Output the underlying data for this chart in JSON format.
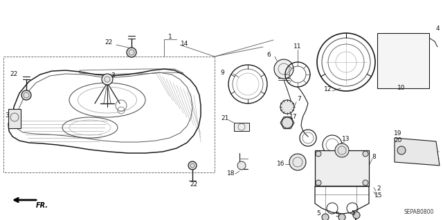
{
  "background_color": "#ffffff",
  "diagram_code": "SEPAB0800",
  "fr_label": "FR.",
  "figsize": [
    6.4,
    3.19
  ],
  "dpi": 100,
  "line_color": "#1a1a1a",
  "gray": "#555555",
  "light_gray": "#aaaaaa"
}
